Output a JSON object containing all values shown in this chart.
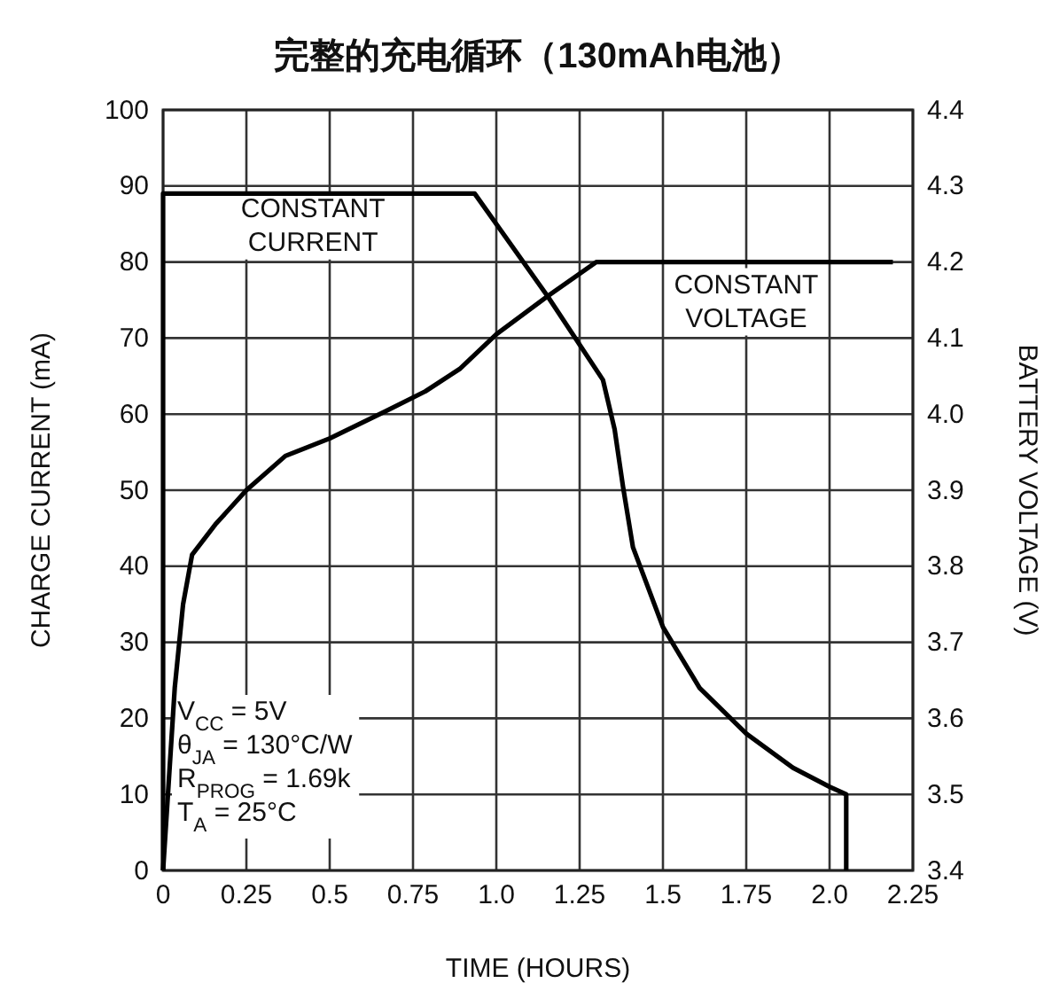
{
  "chart_data": {
    "type": "line",
    "title": "完整的充电循环（130mAh电池）",
    "xlabel": "TIME (HOURS)",
    "ylabel": "CHARGE CURRENT (mA)",
    "y2label": "BATTERY VOLTAGE (V)",
    "xlim": [
      0,
      2.25
    ],
    "xticks": [
      0,
      0.25,
      0.5,
      0.75,
      {
        "value": 1,
        "label": "1.0"
      },
      1.25,
      1.5,
      1.75,
      {
        "value": 2,
        "label": "2.0"
      },
      2.25
    ],
    "ylim": [
      0,
      100
    ],
    "yticks": [
      0,
      10,
      20,
      30,
      40,
      50,
      60,
      70,
      80,
      90,
      100
    ],
    "y2lim": [
      3.4,
      4.4
    ],
    "y2ticks": [
      3.4,
      3.5,
      3.6,
      3.7,
      3.8,
      3.9,
      {
        "value": 4,
        "label": "4.0"
      },
      4.1,
      4.2,
      4.3,
      4.4
    ],
    "grid": true,
    "line_style": "solid",
    "marker": "none",
    "series": [
      {
        "color": "#000000",
        "axis": "y",
        "x": [
          0,
          0,
          0.935,
          1.154,
          1.32,
          1.355,
          1.38,
          1.41,
          1.5,
          1.61,
          1.75,
          1.89,
          2.0,
          2.05,
          2.05
        ],
        "values": [
          0,
          89,
          89,
          75.5,
          64.5,
          58,
          50.5,
          42.5,
          32,
          24,
          18,
          13.5,
          11,
          10,
          0
        ]
      },
      {
        "color": "#000000",
        "axis": "y2",
        "x": [
          0,
          0.035,
          0.06,
          0.087,
          0.157,
          0.25,
          0.367,
          0.5,
          0.664,
          0.787,
          0.892,
          1.0,
          1.154,
          1.3,
          2.19
        ],
        "values": [
          3.4,
          3.64,
          3.75,
          3.815,
          3.855,
          3.9,
          3.945,
          3.968,
          4.003,
          4.03,
          4.06,
          4.105,
          4.155,
          4.2,
          4.2
        ]
      }
    ],
    "annotations": [
      "CONSTANT CURRENT",
      "CONSTANT VOLTAGE",
      "V$_{CC}$ = 5V",
      "θ$_{JA}$ = 130°C/W",
      "R$_{PROG}$ = 1.69k",
      "T$_{A}$ = 25°C"
    ]
  }
}
